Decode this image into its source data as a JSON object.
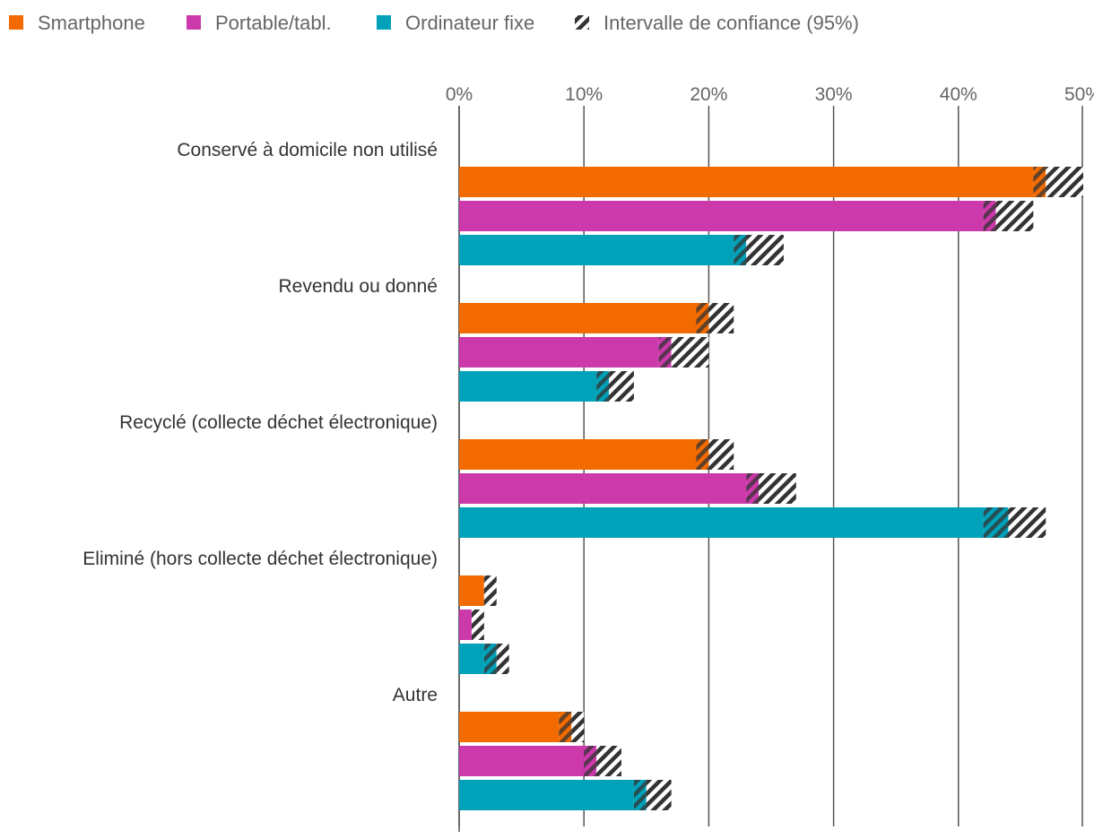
{
  "chart_data": {
    "type": "bar",
    "orientation": "horizontal",
    "categories": [
      "Conservé à domicile non utilisé",
      "Revendu ou donné",
      "Recyclé (collecte déchet électronique)",
      "Eliminé (hors collecte déchet électronique)",
      "Autre"
    ],
    "series": [
      {
        "name": "Smartphone",
        "color": "#f26a00",
        "values": [
          47,
          20,
          20,
          2,
          9
        ],
        "ci_low": [
          46,
          19,
          19,
          2,
          8
        ],
        "ci_high": [
          50,
          22,
          22,
          3,
          10
        ]
      },
      {
        "name": "Portable/tabl.",
        "color": "#cc39aa",
        "values": [
          43,
          17,
          24,
          1,
          11
        ],
        "ci_low": [
          42,
          16,
          23,
          1,
          10
        ],
        "ci_high": [
          46,
          20,
          27,
          2,
          13
        ]
      },
      {
        "name": "Ordinateur fixe",
        "color": "#00a2b9",
        "values": [
          23,
          12,
          44,
          3,
          15
        ],
        "ci_low": [
          22,
          11,
          42,
          2,
          14
        ],
        "ci_high": [
          26,
          14,
          47,
          4,
          17
        ]
      }
    ],
    "ci_legend": "Intervalle de confiance (95%)",
    "xlim": [
      0,
      50
    ],
    "ticks": [
      0,
      10,
      20,
      30,
      40,
      50
    ],
    "tick_labels": [
      "0%",
      "10%",
      "20%",
      "30%",
      "40%",
      "50%"
    ],
    "legend_position": "top-left",
    "grid": true
  }
}
